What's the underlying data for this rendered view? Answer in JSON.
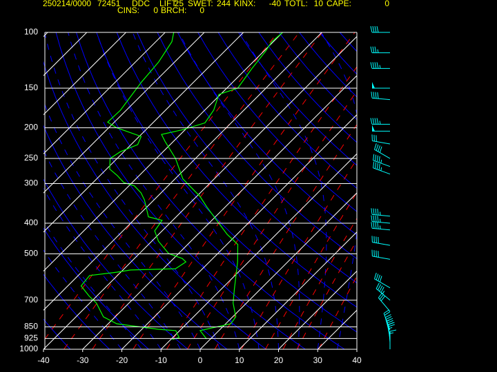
{
  "chart_data": {
    "type": "skewt",
    "header": {
      "date_time": "250214/0000",
      "station_number": "72451",
      "station": "DDC",
      "line1": [
        {
          "label": "LIFT:",
          "value": 25
        },
        {
          "label": "SWET:",
          "value": 244
        },
        {
          "label": "KINX:",
          "value": -40
        },
        {
          "label": "TOTL:",
          "value": 10
        },
        {
          "label": "CAPE:",
          "value": 0
        }
      ],
      "line2": [
        {
          "label": "CINS:",
          "value": 0
        },
        {
          "label": "BRCH:",
          "value": 0
        }
      ]
    },
    "xlim": [
      -40,
      40
    ],
    "xticks": [
      -40,
      -30,
      -20,
      -10,
      0,
      10,
      20,
      30,
      40
    ],
    "ylim": [
      1000,
      100
    ],
    "yticks": [
      100,
      150,
      200,
      250,
      300,
      400,
      500,
      700,
      850,
      925,
      1000
    ],
    "log_y": true,
    "grid": true,
    "series": [
      {
        "color": "#00ff00",
        "pressure": [
          928,
          873,
          831,
          790,
          715,
          647,
          530,
          467,
          434,
          355,
          329,
          290,
          250,
          221,
          210,
          203,
          193,
          176,
          157,
          150,
          130,
          115,
          107,
          100
        ],
        "values": [
          -1.0,
          -4.8,
          1.3,
          0.8,
          -3.4,
          -6.6,
          -12.8,
          -17.2,
          -22.5,
          -34.8,
          -39.2,
          -48.0,
          -55.1,
          -62.1,
          -64.8,
          -60.7,
          -56.7,
          -57.7,
          -60.4,
          -57.2,
          -58.6,
          -59.5,
          -60.4,
          -60.0
        ]
      },
      {
        "color": "#00ff00",
        "pressure": [
          932,
          918,
          873,
          865,
          831,
          790,
          715,
          680,
          631,
          585,
          571,
          562,
          557,
          530,
          517,
          499,
          456,
          423,
          392,
          382,
          338,
          321,
          305,
          298,
          283,
          270,
          250,
          238,
          226,
          213,
          200,
          192,
          176,
          144,
          124,
          107,
          100
        ],
        "values": [
          -9.6,
          -8.4,
          -11.0,
          -15.8,
          -27.8,
          -33.0,
          -38.3,
          -41.9,
          -46.6,
          -47.1,
          -41.0,
          -38.0,
          -26.9,
          -26.0,
          -27.8,
          -32.5,
          -38.3,
          -41.9,
          -42.7,
          -47.1,
          -52.4,
          -55.1,
          -58.6,
          -62.1,
          -65.6,
          -69.2,
          -71.8,
          -70.9,
          -68.3,
          -69.5,
          -78.0,
          -81.7,
          -81.5,
          -83.3,
          -84.1,
          -85.9,
          -87.8
        ]
      }
    ],
    "wind": {
      "color": "#00ffff",
      "pressure": [
        100,
        116,
        130,
        150,
        163,
        195,
        205,
        225,
        250,
        265,
        280,
        380,
        400,
        420,
        470,
        520,
        640,
        700,
        760,
        870,
        900,
        925,
        950,
        1000
      ],
      "direction": [
        270,
        270,
        270,
        270,
        275,
        270,
        270,
        280,
        300,
        290,
        290,
        275,
        275,
        275,
        280,
        280,
        300,
        310,
        320,
        340,
        345,
        350,
        355,
        360
      ],
      "speed": [
        40,
        35,
        45,
        50,
        40,
        45,
        50,
        30,
        40,
        45,
        45,
        45,
        45,
        45,
        40,
        40,
        40,
        45,
        30,
        20,
        25,
        30,
        25,
        15
      ]
    }
  }
}
